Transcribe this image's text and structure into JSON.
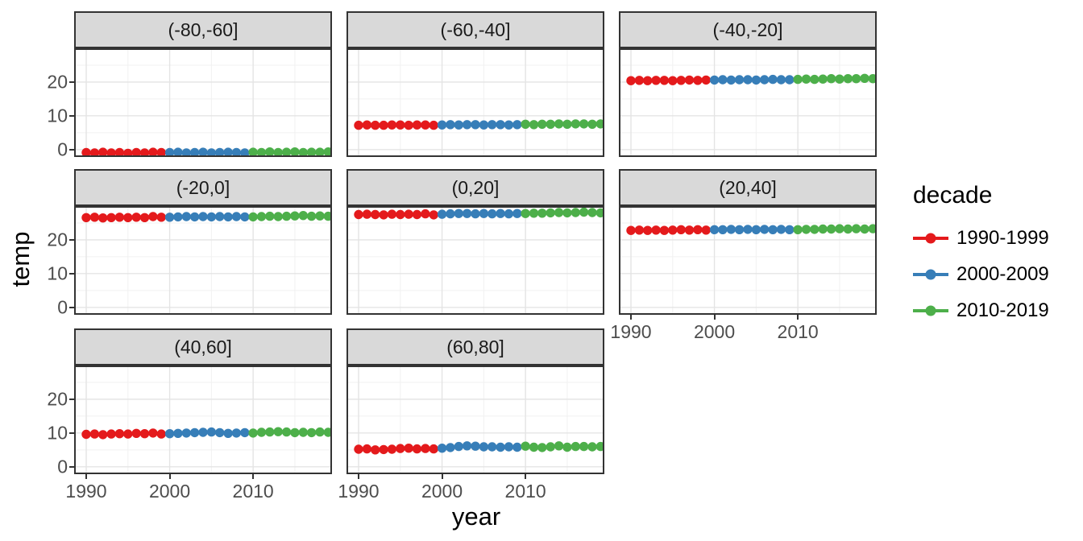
{
  "figure": {
    "y_axis_title": "temp",
    "x_axis_title": "year",
    "legend": {
      "title": "decade",
      "entries": [
        {
          "label": "1990-1999",
          "color": "#E41A1C",
          "from": 1990,
          "to": 1999
        },
        {
          "label": "2000-2009",
          "color": "#377EB8",
          "from": 2000,
          "to": 2009
        },
        {
          "label": "2010-2019",
          "color": "#4DAF4A",
          "from": 2010,
          "to": 2019
        }
      ]
    }
  },
  "chart_data": {
    "type": "scatter",
    "facet_variable": "latitude band",
    "color_by": "decade",
    "xlabel": "year",
    "ylabel": "temp",
    "x_ticks": [
      1990,
      2000,
      2010
    ],
    "x_minor_ticks": [
      1995,
      2005,
      2015
    ],
    "y_ticks": [
      0,
      10,
      20
    ],
    "y_minor_ticks": [
      5,
      15,
      25
    ],
    "xlim": [
      1988.5,
      2019.5
    ],
    "ylim": [
      -2.2,
      30
    ],
    "grid": "on",
    "legend_position": "right",
    "years": [
      1990,
      1991,
      1992,
      1993,
      1994,
      1995,
      1996,
      1997,
      1998,
      1999,
      2000,
      2001,
      2002,
      2003,
      2004,
      2005,
      2006,
      2007,
      2008,
      2009,
      2010,
      2011,
      2012,
      2013,
      2014,
      2015,
      2016,
      2017,
      2018,
      2019
    ],
    "facets": [
      {
        "label": "(-80,-60]",
        "values": [
          -0.9,
          -1.0,
          -0.8,
          -1.0,
          -0.9,
          -1.1,
          -0.9,
          -1.0,
          -0.8,
          -0.9,
          -0.9,
          -0.8,
          -1.0,
          -0.9,
          -0.8,
          -1.0,
          -0.9,
          -0.8,
          -0.9,
          -1.0,
          -0.8,
          -0.9,
          -0.7,
          -0.9,
          -0.8,
          -0.7,
          -0.9,
          -0.8,
          -0.8,
          -0.7
        ]
      },
      {
        "label": "(-60,-40]",
        "values": [
          7.2,
          7.3,
          7.2,
          7.2,
          7.3,
          7.3,
          7.2,
          7.3,
          7.3,
          7.2,
          7.3,
          7.4,
          7.3,
          7.4,
          7.4,
          7.3,
          7.4,
          7.4,
          7.3,
          7.4,
          7.5,
          7.4,
          7.5,
          7.5,
          7.6,
          7.5,
          7.6,
          7.6,
          7.5,
          7.6
        ]
      },
      {
        "label": "(-40,-20]",
        "values": [
          20.4,
          20.5,
          20.4,
          20.5,
          20.5,
          20.4,
          20.5,
          20.6,
          20.5,
          20.6,
          20.6,
          20.7,
          20.6,
          20.7,
          20.7,
          20.6,
          20.7,
          20.8,
          20.7,
          20.7,
          20.8,
          20.9,
          20.8,
          20.9,
          21.0,
          20.9,
          21.0,
          21.0,
          21.1,
          21.0
        ]
      },
      {
        "label": "(-20,0]",
        "values": [
          26.6,
          26.7,
          26.5,
          26.6,
          26.7,
          26.6,
          26.7,
          26.6,
          26.9,
          26.7,
          26.7,
          26.8,
          26.9,
          26.8,
          26.9,
          26.8,
          26.9,
          26.8,
          26.9,
          26.8,
          26.8,
          26.9,
          27.0,
          26.9,
          27.0,
          27.1,
          27.2,
          27.0,
          27.1,
          27.0
        ]
      },
      {
        "label": "(0,20]",
        "values": [
          27.5,
          27.6,
          27.5,
          27.4,
          27.6,
          27.5,
          27.6,
          27.5,
          27.7,
          27.4,
          27.6,
          27.7,
          27.8,
          27.8,
          27.7,
          27.8,
          27.7,
          27.8,
          27.7,
          27.8,
          27.8,
          27.9,
          27.9,
          28.0,
          28.1,
          28.0,
          28.1,
          28.2,
          28.1,
          28.0
        ]
      },
      {
        "label": "(20,40]",
        "values": [
          22.8,
          22.9,
          22.8,
          22.9,
          22.8,
          22.9,
          23.0,
          22.9,
          23.0,
          22.9,
          23.0,
          23.0,
          23.1,
          23.0,
          23.1,
          23.0,
          23.1,
          23.0,
          23.1,
          23.0,
          23.0,
          23.1,
          23.1,
          23.2,
          23.2,
          23.3,
          23.2,
          23.3,
          23.2,
          23.3
        ]
      },
      {
        "label": "(40,60]",
        "values": [
          9.6,
          9.7,
          9.5,
          9.7,
          9.8,
          9.7,
          9.9,
          9.8,
          10.0,
          9.7,
          9.8,
          9.9,
          10.0,
          10.1,
          10.2,
          10.3,
          10.1,
          9.9,
          10.0,
          10.1,
          10.0,
          10.2,
          10.3,
          10.4,
          10.3,
          10.1,
          10.2,
          10.1,
          10.3,
          10.2
        ]
      },
      {
        "label": "(60,80]",
        "values": [
          5.2,
          5.3,
          5.0,
          5.1,
          5.2,
          5.4,
          5.5,
          5.3,
          5.4,
          5.3,
          5.5,
          5.7,
          6.0,
          6.2,
          6.1,
          5.9,
          5.9,
          5.8,
          5.9,
          5.8,
          6.1,
          5.8,
          5.7,
          5.9,
          6.2,
          5.8,
          6.0,
          6.0,
          5.9,
          6.0
        ]
      }
    ]
  },
  "style": {
    "background": "#FFFFFF",
    "strip_fill": "#D9D9D9",
    "border": "#333333",
    "grid_major": "#E4E4E4",
    "grid_minor": "#F1F1F1",
    "axis_text": "#4D4D4D",
    "ink": "#000000"
  }
}
